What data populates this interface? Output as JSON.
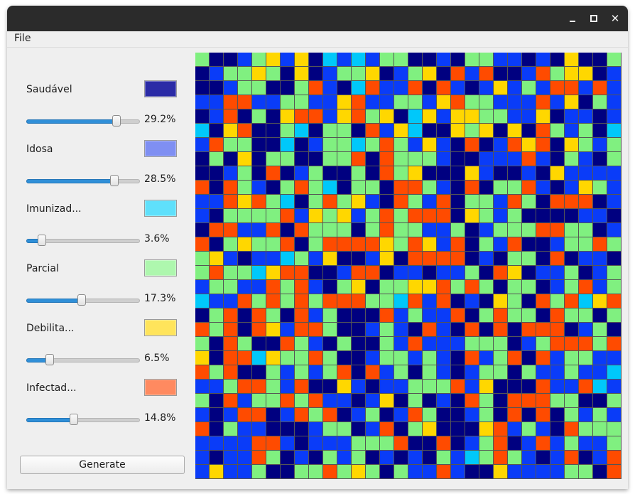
{
  "menu": {
    "file_label": "File"
  },
  "titlebar": {
    "close_glyph": "✕"
  },
  "categories": [
    {
      "id": "saudavel",
      "label": "Saudável",
      "color": "#2b2ba6",
      "percent_label": "29.2%",
      "slider_value": 0.8
    },
    {
      "id": "idosa",
      "label": "Idosa",
      "color": "#7f8ff2",
      "percent_label": "28.5%",
      "slider_value": 0.78
    },
    {
      "id": "imunizado",
      "label": "Imunizad...",
      "color": "#5fe0fb",
      "percent_label": "3.6%",
      "slider_value": 0.13
    },
    {
      "id": "parcial",
      "label": "Parcial",
      "color": "#aef7ae",
      "percent_label": "17.3%",
      "slider_value": 0.49
    },
    {
      "id": "debilitado",
      "label": "Debilita...",
      "color": "#ffe45b",
      "percent_label": "6.5%",
      "slider_value": 0.2
    },
    {
      "id": "infectado",
      "label": "Infectad...",
      "color": "#ff8a60",
      "percent_label": "14.8%",
      "slider_value": 0.42
    }
  ],
  "generate_label": "Generate",
  "grid": {
    "rows": 30,
    "cols": 30,
    "palette": [
      "#000080",
      "#0a3cf8",
      "#00c8fa",
      "#80f080",
      "#ffd700",
      "#ff4b00"
    ],
    "cells": [
      "300134140212133001033110104003",
      "013343040133401340515001534401",
      "001330035102511505101413155151",
      "115511331145113314533111514031",
      "015030455145340241443311401101",
      "204500320330514200434040531302",
      "153300201332353141050154504313",
      "030403300335053331001115103103",
      "001305013003053400041001041111",
      "505310353203305531050335101431",
      "115453203534105315033153055501",
      "103333514341353555043130000110",
      "055115053330353311301333553301",
      "503433503555543541503150013353",
      "341011231400140555501033050110",
      "353324550015501101130540113013",
      "133115351034033445353033013513",
      "211535353555332515010430535245",
      "035053051300051311503533053303",
      "535054155300131051050505550130",
      "305300531030031511133301355535",
      "405524335300133131051350513311",
      "535003131350513031013303113112",
      "113553150041011333514000511521",
      "305133535110140301053055533003",
      "101550153501301530013050503131",
      "503110001330150340004513105333",
      "111155101113335005013501513113",
      "101153010313010103123531015015",
      "141130033534303115100411113305"
    ]
  }
}
